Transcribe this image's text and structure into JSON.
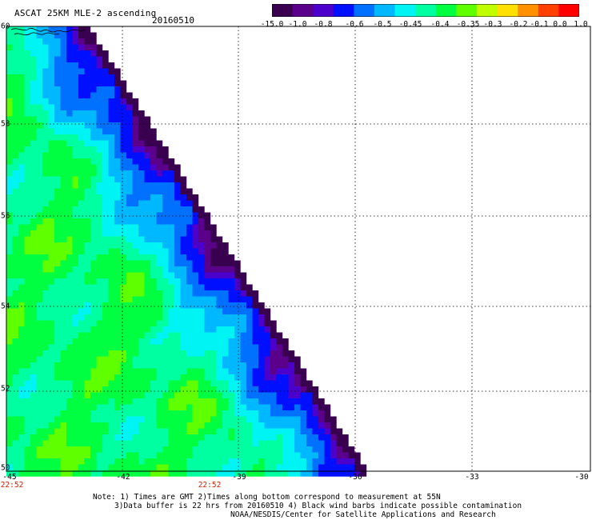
{
  "header": {
    "title": "ASCAT 25KM MLE-2 ascending",
    "date": "20160510"
  },
  "colorbar": {
    "labels": [
      "-15.0",
      "-1.0",
      "-0.8",
      "-0.6",
      "-0.5",
      "-0.45",
      "-0.4",
      "-0.35",
      "-0.3",
      "-0.2",
      "-0.1",
      "0.0",
      "1.0"
    ],
    "colors": [
      "#3a0050",
      "#5a008a",
      "#4b00cc",
      "#0010ff",
      "#0070ff",
      "#00b8ff",
      "#00f4f4",
      "#00ffa0",
      "#00ff40",
      "#60ff00",
      "#c0ff00",
      "#ffe000",
      "#ff9000",
      "#ff4000",
      "#ff0000"
    ]
  },
  "map": {
    "lat_labels": [
      "60",
      "58",
      "56",
      "54",
      "52",
      "50"
    ],
    "lon_labels": [
      "-45",
      "-42",
      "-39",
      "-36",
      "-33",
      "-30"
    ],
    "time_labels": [
      "22:52",
      "22:52"
    ],
    "lon_range": [
      -45,
      -30
    ],
    "lat_range": [
      50,
      60
    ]
  },
  "notes": [
    "Note: 1) Times are GMT 2)Times along bottom correspond to measurement at 55N",
    "3)Data buffer is 22 hrs from 20160510 4) Black wind barbs indicate possible contamination",
    "NOAA/NESDIS/Center for Satellite Applications and Research"
  ]
}
